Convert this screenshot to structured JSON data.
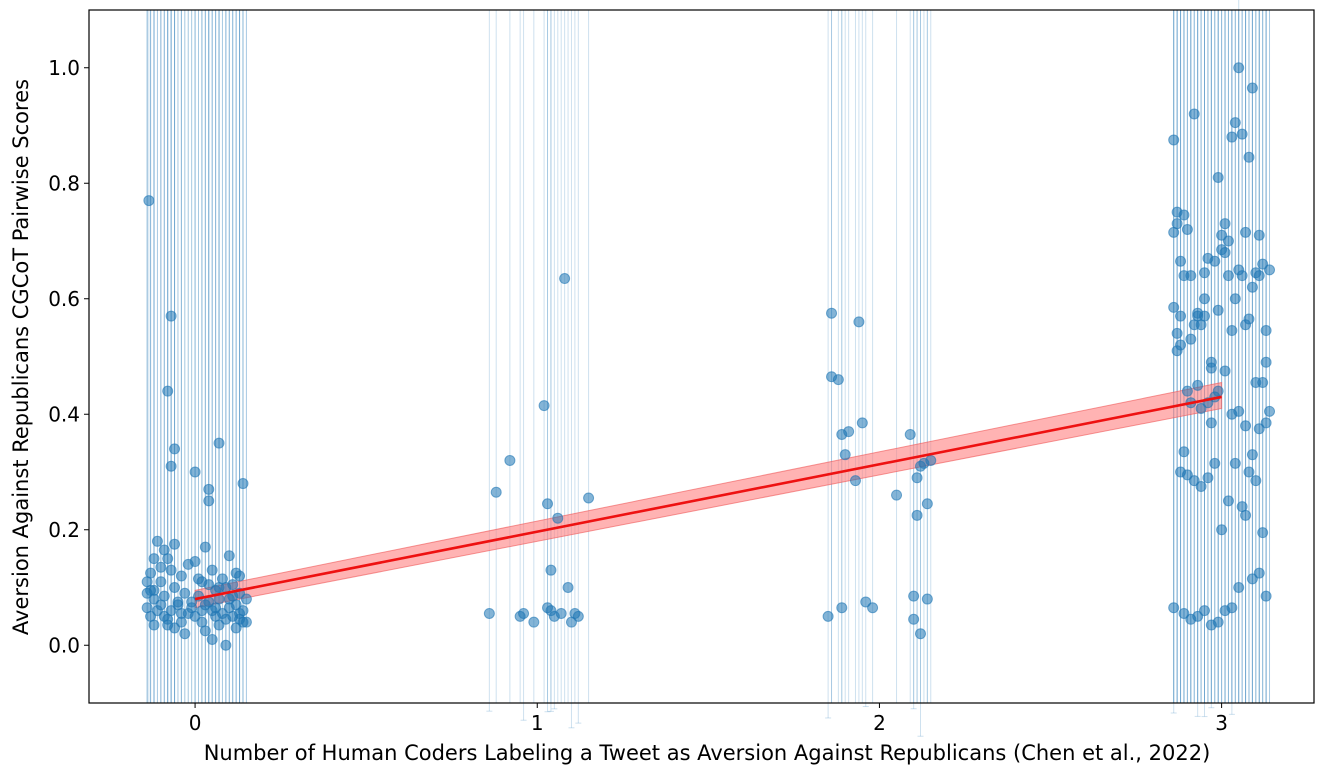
{
  "chart_data": {
    "type": "scatter",
    "xlabel": "Number of Human Coders Labeling a Tweet as Aversion Against Republicans (Chen et al., 2022)",
    "ylabel": "Aversion Against Republicans CGCoT Pairwise Scores",
    "xlim": [
      -0.31,
      3.27
    ],
    "ylim": [
      -0.1,
      1.1
    ],
    "x_ticks": [
      0,
      1,
      2,
      3
    ],
    "y_ticks": [
      0.0,
      0.2,
      0.4,
      0.6,
      0.8,
      1.0
    ],
    "x_tick_labels": [
      "0",
      "1",
      "2",
      "3"
    ],
    "y_tick_labels": [
      "0.0",
      "0.2",
      "0.4",
      "0.6",
      "0.8",
      "1.0"
    ],
    "grid": false,
    "colors": {
      "points": "#1f77b4",
      "fit_line": "#ee1111",
      "confidence_band": "#ff8080"
    },
    "fit_line": {
      "x": [
        0,
        3
      ],
      "y": [
        0.08,
        0.43
      ]
    },
    "confidence_band": {
      "x": [
        0,
        3
      ],
      "lower": [
        0.065,
        0.41
      ],
      "upper": [
        0.095,
        0.455
      ]
    },
    "points_x0": {
      "y": [
        0.77,
        0.57,
        0.44,
        0.34,
        0.31,
        0.35,
        0.3,
        0.27,
        0.25,
        0.28,
        0.18,
        0.175,
        0.17,
        0.165,
        0.15,
        0.15,
        0.155,
        0.14,
        0.135,
        0.13,
        0.125,
        0.12,
        0.115,
        0.11,
        0.11,
        0.105,
        0.1,
        0.1,
        0.095,
        0.095,
        0.09,
        0.09,
        0.085,
        0.085,
        0.08,
        0.08,
        0.08,
        0.075,
        0.075,
        0.07,
        0.07,
        0.07,
        0.065,
        0.065,
        0.065,
        0.06,
        0.06,
        0.06,
        0.06,
        0.055,
        0.055,
        0.055,
        0.05,
        0.05,
        0.05,
        0.05,
        0.045,
        0.045,
        0.04,
        0.04,
        0.04,
        0.035,
        0.035,
        0.03,
        0.03,
        0.025,
        0.02,
        0.01,
        0.0,
        0.145,
        0.13,
        0.12,
        0.11,
        0.1,
        0.09,
        0.08,
        0.07,
        0.06,
        0.05,
        0.04,
        0.105,
        0.095,
        0.085,
        0.075,
        0.065,
        0.055,
        0.045,
        0.035,
        0.115,
        0.125
      ],
      "x": [
        -0.135,
        -0.07,
        -0.08,
        -0.06,
        -0.07,
        0.07,
        0.0,
        0.04,
        0.04,
        0.14,
        -0.11,
        -0.06,
        0.03,
        -0.09,
        -0.12,
        -0.08,
        0.1,
        -0.02,
        -0.1,
        0.05,
        0.12,
        -0.04,
        0.08,
        -0.14,
        0.02,
        0.11,
        -0.06,
        0.09,
        -0.13,
        0.06,
        -0.03,
        0.13,
        -0.09,
        0.01,
        -0.12,
        0.07,
        0.15,
        -0.05,
        0.04,
        -0.1,
        0.03,
        0.12,
        -0.14,
        -0.01,
        0.1,
        -0.07,
        0.05,
        0.14,
        -0.11,
        -0.02,
        0.08,
        0.13,
        -0.13,
        0.0,
        0.06,
        0.11,
        -0.08,
        0.09,
        -0.04,
        0.02,
        0.15,
        -0.12,
        0.07,
        -0.06,
        0.12,
        0.03,
        -0.03,
        0.05,
        0.09,
        0.0,
        -0.07,
        0.13,
        -0.1,
        0.07,
        -0.14,
        0.1,
        -0.05,
        0.02,
        -0.09,
        0.14,
        0.04,
        -0.12,
        0.11,
        -0.01,
        0.06,
        -0.04,
        0.13,
        -0.08,
        0.01,
        -0.13
      ]
    },
    "points_x1": {
      "x": [
        0.86,
        0.88,
        0.92,
        0.95,
        0.96,
        0.99,
        1.02,
        1.03,
        1.04,
        1.04,
        1.05,
        1.06,
        1.07,
        1.08,
        1.09,
        1.1,
        1.11,
        1.12,
        1.15,
        1.03
      ],
      "y": [
        0.055,
        0.265,
        0.32,
        0.05,
        0.055,
        0.04,
        0.415,
        0.245,
        0.06,
        0.13,
        0.05,
        0.22,
        0.055,
        0.635,
        0.1,
        0.04,
        0.055,
        0.05,
        0.255,
        0.065
      ]
    },
    "points_x2": {
      "x": [
        1.85,
        1.86,
        1.86,
        1.88,
        1.89,
        1.89,
        1.9,
        1.91,
        1.93,
        1.94,
        1.95,
        1.96,
        1.98,
        2.05,
        2.09,
        2.1,
        2.11,
        2.11,
        2.12,
        2.13,
        2.14,
        2.14,
        2.15,
        2.1,
        2.12
      ],
      "y": [
        0.05,
        0.465,
        0.575,
        0.46,
        0.065,
        0.365,
        0.33,
        0.37,
        0.285,
        0.56,
        0.385,
        0.075,
        0.065,
        0.26,
        0.365,
        0.045,
        0.29,
        0.225,
        0.31,
        0.315,
        0.245,
        0.08,
        0.32,
        0.085,
        0.02
      ]
    },
    "points_x3": {
      "x": [
        2.86,
        2.86,
        2.87,
        2.87,
        2.88,
        2.88,
        2.89,
        2.9,
        2.91,
        2.92,
        2.93,
        2.94,
        2.95,
        2.96,
        2.97,
        2.98,
        2.99,
        3.0,
        3.01,
        3.02,
        3.03,
        3.04,
        3.05,
        3.06,
        3.07,
        3.08,
        3.09,
        3.1,
        3.11,
        3.12,
        3.13,
        3.14,
        2.87,
        2.89,
        2.91,
        2.93,
        2.95,
        2.97,
        2.99,
        3.01,
        3.03,
        3.05,
        3.07,
        3.09,
        3.11,
        3.13,
        2.86,
        2.88,
        2.9,
        2.92,
        2.94,
        2.96,
        2.98,
        3.0,
        3.02,
        3.04,
        3.06,
        3.08,
        3.1,
        3.12,
        3.14,
        2.87,
        2.89,
        2.91,
        2.93,
        2.95,
        2.97,
        2.99,
        3.01,
        3.03,
        3.05,
        3.07,
        3.09,
        3.11,
        3.13,
        2.88,
        2.9,
        2.92,
        2.94,
        2.96,
        2.98,
        3.0,
        3.02,
        3.04,
        3.06,
        3.08,
        3.1,
        3.12,
        2.86,
        2.89,
        2.93,
        2.97,
        3.01,
        3.05,
        3.09,
        3.13,
        2.91,
        2.95,
        2.99,
        3.03,
        3.07,
        3.11
      ],
      "y": [
        0.875,
        0.715,
        0.75,
        0.54,
        0.665,
        0.57,
        0.745,
        0.72,
        0.64,
        0.92,
        0.575,
        0.555,
        0.645,
        0.67,
        0.49,
        0.665,
        0.81,
        0.685,
        0.73,
        0.64,
        0.88,
        0.905,
        1.0,
        0.885,
        0.715,
        0.845,
        0.965,
        0.645,
        0.71,
        0.66,
        0.545,
        0.65,
        0.73,
        0.64,
        0.53,
        0.57,
        0.57,
        0.48,
        0.58,
        0.68,
        0.545,
        0.65,
        0.555,
        0.62,
        0.64,
        0.49,
        0.585,
        0.52,
        0.44,
        0.555,
        0.41,
        0.42,
        0.43,
        0.71,
        0.7,
        0.6,
        0.64,
        0.565,
        0.455,
        0.455,
        0.405,
        0.51,
        0.335,
        0.42,
        0.45,
        0.6,
        0.385,
        0.44,
        0.475,
        0.4,
        0.405,
        0.38,
        0.33,
        0.375,
        0.385,
        0.3,
        0.295,
        0.285,
        0.275,
        0.29,
        0.315,
        0.2,
        0.25,
        0.315,
        0.24,
        0.3,
        0.285,
        0.195,
        0.065,
        0.055,
        0.05,
        0.035,
        0.06,
        0.1,
        0.115,
        0.085,
        0.045,
        0.06,
        0.04,
        0.065,
        0.225,
        0.125
      ]
    }
  }
}
